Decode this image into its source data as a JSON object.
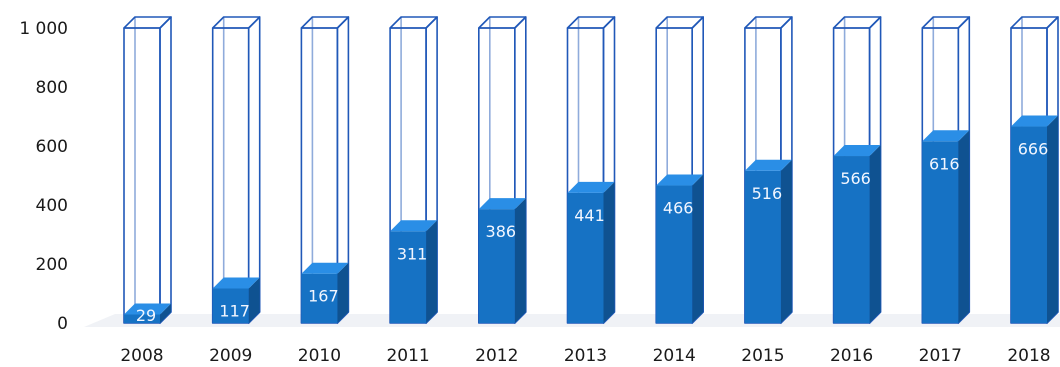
{
  "chart_data": {
    "type": "bar",
    "title": "",
    "xlabel": "",
    "ylabel": "",
    "categories": [
      "2008",
      "2009",
      "2010",
      "2011",
      "2012",
      "2013",
      "2014",
      "2015",
      "2016",
      "2017",
      "2018"
    ],
    "values": [
      29,
      117,
      167,
      311,
      386,
      441,
      466,
      516,
      566,
      616,
      666
    ],
    "capacity": 1000,
    "ylim": [
      0,
      1000
    ],
    "yticks": [
      {
        "value": 0,
        "label": "0"
      },
      {
        "value": 200,
        "label": "200"
      },
      {
        "value": 400,
        "label": "400"
      },
      {
        "value": 600,
        "label": "600"
      },
      {
        "value": 800,
        "label": "800"
      },
      {
        "value": 1000,
        "label": "1 000"
      }
    ],
    "grid": false,
    "legend": "none",
    "colors": {
      "fill_front": "#1672c4",
      "fill_side": "#0f5291",
      "fill_top": "#2a8ee6",
      "outline": "#2058b8",
      "label": "#f2f6ff"
    }
  }
}
